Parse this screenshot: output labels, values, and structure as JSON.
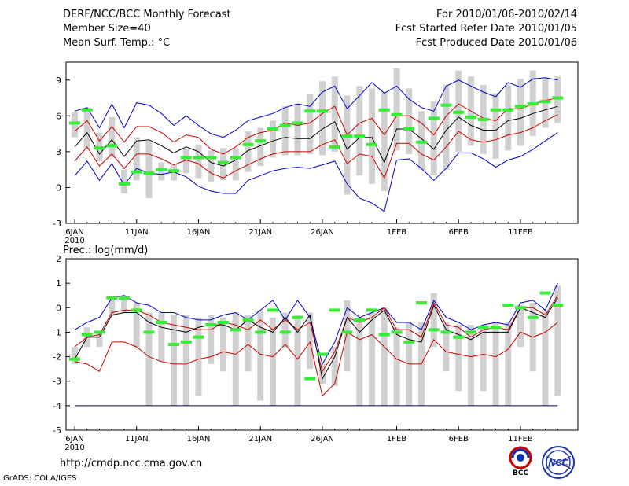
{
  "header": {
    "title": "DERF/NCC/BCC Monthly Forecast",
    "member_size": "Member Size=40",
    "variable": "Mean Surf. Temp.: °C",
    "forecast_period": "For 2010/01/06-2010/02/14",
    "started_refer": "Fcst Started Refer Date 2010/01/05",
    "produced": "Fcst Produced Date 2010/01/06"
  },
  "footer": {
    "url": "http://cmdp.ncc.cma.gov.cn",
    "grads": "GrADS: COLA/IGES",
    "logo_bcc": "BCC",
    "logo_ncc": "NCC"
  },
  "colors": {
    "box": "#d0d0d0",
    "median": "#33ee33",
    "mean": "#000000",
    "std": "#cc0000",
    "extreme": "#0000cc",
    "axis": "#000000"
  },
  "chart_data": [
    {
      "id": "temperature",
      "type": "line",
      "title": "Mean Surf. Temp.: °C",
      "ylim": [
        -3,
        10.5
      ],
      "y_ticks": [
        "-3",
        "0",
        "3",
        "6",
        "9"
      ],
      "x_ticks": [
        "6JAN",
        "11JAN",
        "16JAN",
        "21JAN",
        "26JAN",
        "1FEB",
        "6FEB",
        "11FEB"
      ],
      "x_tick_days": [
        0,
        5,
        10,
        15,
        20,
        26,
        31,
        36
      ],
      "year_label": "2010",
      "days": 40,
      "series": [
        {
          "name": "Ensemble max",
          "color": "#0000cc",
          "values": [
            6.4,
            6.7,
            5.0,
            7.0,
            5.0,
            7.1,
            6.9,
            6.2,
            5.2,
            6.0,
            5.2,
            4.5,
            4.2,
            4.8,
            5.6,
            5.9,
            6.2,
            6.7,
            7.0,
            6.8,
            8.0,
            8.5,
            6.6,
            7.7,
            8.8,
            7.9,
            8.5,
            7.4,
            6.7,
            6.4,
            8.5,
            9.0,
            8.5,
            8.0,
            7.6,
            8.8,
            8.4,
            9.1,
            9.2,
            9.0
          ]
        },
        {
          "name": "Mean + 1 std",
          "color": "#cc0000",
          "values": [
            4.7,
            5.6,
            3.9,
            5.1,
            3.8,
            5.1,
            5.1,
            4.6,
            3.8,
            4.4,
            4.2,
            3.2,
            2.8,
            3.4,
            4.2,
            4.6,
            4.8,
            5.4,
            5.2,
            5.4,
            6.2,
            6.8,
            4.4,
            5.4,
            5.8,
            4.4,
            6.0,
            6.0,
            5.4,
            4.4,
            6.0,
            7.0,
            6.4,
            5.8,
            5.6,
            6.6,
            6.6,
            7.0,
            7.3,
            7.5
          ]
        },
        {
          "name": "Ensemble mean",
          "color": "#000000",
          "values": [
            3.4,
            4.6,
            2.8,
            4.0,
            2.6,
            3.9,
            4.0,
            3.5,
            2.9,
            3.4,
            3.0,
            2.1,
            1.8,
            2.3,
            3.1,
            3.5,
            3.9,
            4.2,
            4.1,
            4.1,
            4.9,
            5.5,
            3.2,
            4.2,
            4.2,
            2.1,
            4.9,
            4.9,
            4.1,
            3.2,
            4.8,
            5.9,
            5.2,
            4.8,
            4.8,
            5.6,
            5.8,
            6.2,
            6.5,
            6.8
          ]
        },
        {
          "name": "Mean - 1 std",
          "color": "#cc0000",
          "values": [
            2.2,
            3.4,
            1.8,
            2.8,
            1.6,
            2.8,
            2.8,
            2.4,
            1.9,
            2.3,
            2.0,
            1.2,
            0.8,
            1.4,
            1.9,
            2.4,
            2.8,
            3.0,
            3.0,
            3.0,
            3.6,
            4.0,
            2.0,
            2.8,
            2.6,
            0.8,
            3.7,
            3.7,
            2.8,
            2.3,
            3.4,
            4.7,
            4.0,
            3.8,
            4.0,
            4.4,
            4.6,
            5.0,
            5.6,
            6.1
          ]
        },
        {
          "name": "Ensemble min",
          "color": "#0000cc",
          "values": [
            1.0,
            2.2,
            0.6,
            2.0,
            0.2,
            1.6,
            1.2,
            1.1,
            1.3,
            0.9,
            0.1,
            -0.3,
            -0.5,
            -0.5,
            0.6,
            1.0,
            1.4,
            1.6,
            1.7,
            1.6,
            1.9,
            2.2,
            0.3,
            -0.9,
            -1.3,
            -2.0,
            2.3,
            2.4,
            1.6,
            0.6,
            1.6,
            2.9,
            2.9,
            2.4,
            1.7,
            2.3,
            2.6,
            3.2,
            3.9,
            4.6
          ]
        }
      ],
      "boxes": {
        "low": [
          4.2,
          3.2,
          2.2,
          2.5,
          -0.5,
          0.6,
          -0.9,
          0.6,
          0.6,
          1.2,
          0.8,
          0.5,
          0.6,
          0.6,
          1.3,
          1.8,
          2.5,
          2.7,
          2.7,
          2.8,
          2.7,
          3.0,
          -0.6,
          1.0,
          0.3,
          -0.3,
          3.1,
          2.8,
          1.5,
          1.0,
          1.5,
          3.0,
          3.5,
          2.8,
          2.4,
          3.1,
          3.5,
          4.3,
          5.0,
          5.4
        ],
        "high": [
          6.3,
          6.7,
          4.6,
          5.9,
          1.5,
          4.2,
          3.9,
          2.1,
          2.0,
          3.2,
          3.6,
          3.1,
          3.3,
          3.3,
          4.7,
          5.0,
          5.6,
          6.8,
          7.0,
          7.8,
          8.9,
          9.3,
          7.7,
          8.5,
          8.3,
          8.0,
          10.0,
          8.3,
          6.4,
          7.2,
          8.6,
          9.8,
          9.3,
          8.6,
          7.9,
          8.6,
          9.1,
          9.8,
          9.2,
          9.3
        ],
        "median": [
          5.4,
          6.5,
          3.3,
          3.5,
          0.3,
          1.3,
          1.2,
          1.5,
          1.4,
          2.5,
          2.5,
          2.5,
          2.1,
          2.5,
          3.6,
          3.9,
          4.9,
          5.2,
          5.4,
          6.4,
          6.4,
          3.4,
          4.3,
          4.3,
          3.6,
          6.5,
          6.1,
          4.9,
          3.8,
          5.8,
          6.9,
          6.3,
          5.9,
          5.7,
          6.5,
          6.5,
          6.8,
          7.0,
          7.2,
          7.5
        ]
      }
    },
    {
      "id": "precipitation",
      "type": "line",
      "title": "Prec.: log(mm/d)",
      "ylim": [
        -5,
        2
      ],
      "y_ticks": [
        "-5",
        "-4",
        "-3",
        "-2",
        "-1",
        "0",
        "1",
        "2"
      ],
      "x_ticks": [
        "6JAN",
        "11JAN",
        "16JAN",
        "21JAN",
        "26JAN",
        "1FEB",
        "6FEB",
        "11FEB"
      ],
      "x_tick_days": [
        0,
        5,
        10,
        15,
        20,
        26,
        31,
        36
      ],
      "year_label": "2010",
      "days": 40,
      "floor": -4,
      "series": [
        {
          "name": "Ensemble max",
          "color": "#0000cc",
          "values": [
            -0.9,
            -0.6,
            -0.4,
            0.4,
            0.5,
            0.2,
            0.1,
            -0.2,
            -0.2,
            -0.4,
            -0.5,
            -0.5,
            -0.3,
            -0.2,
            -0.5,
            -0.1,
            0.3,
            -0.5,
            0.3,
            -0.4,
            -2.3,
            -1.4,
            0.0,
            -0.4,
            -0.2,
            0.0,
            -0.6,
            -0.6,
            -0.9,
            0.3,
            -0.4,
            -0.6,
            -0.9,
            -0.7,
            -0.6,
            -0.7,
            0.2,
            0.3,
            -0.1,
            1.0
          ]
        },
        {
          "name": "Mean + 1 std",
          "color": "#cc0000",
          "values": [
            -1.6,
            -1.2,
            -1.1,
            -0.2,
            -0.1,
            -0.1,
            -0.3,
            -0.6,
            -0.7,
            -0.8,
            -0.9,
            -0.9,
            -0.6,
            -0.7,
            -0.9,
            -0.5,
            -0.9,
            -0.5,
            -0.9,
            -0.6,
            -2.6,
            -1.8,
            -0.4,
            -0.6,
            -0.4,
            0.0,
            -0.9,
            -0.9,
            -1.2,
            0.2,
            -0.7,
            -0.8,
            -1.2,
            -0.9,
            -0.8,
            -0.9,
            0.0,
            0.0,
            -0.3,
            0.5
          ]
        },
        {
          "name": "Ensemble mean",
          "color": "#000000",
          "values": [
            -2.1,
            -1.2,
            -1.2,
            -0.3,
            -0.2,
            -0.2,
            -0.6,
            -0.8,
            -0.9,
            -1.0,
            -0.8,
            -0.7,
            -0.7,
            -0.9,
            -0.5,
            -0.8,
            -1.0,
            -0.4,
            -1.0,
            -0.3,
            -2.9,
            -2.0,
            -0.4,
            -1.0,
            -0.5,
            -0.1,
            -1.1,
            -1.3,
            -1.4,
            0.1,
            -0.9,
            -1.1,
            -1.3,
            -1.0,
            -1.0,
            -1.0,
            0.0,
            -0.2,
            -0.4,
            0.4
          ]
        },
        {
          "name": "Mean - 1 std",
          "color": "#cc0000",
          "values": [
            -2.2,
            -2.3,
            -2.6,
            -1.4,
            -1.4,
            -1.6,
            -2.0,
            -2.2,
            -2.3,
            -2.3,
            -2.1,
            -2.0,
            -1.8,
            -1.9,
            -1.5,
            -1.9,
            -2.0,
            -1.5,
            -2.1,
            -1.4,
            -3.6,
            -3.1,
            -1.0,
            -1.3,
            -1.1,
            -1.6,
            -2.1,
            -2.3,
            -2.3,
            -1.3,
            -1.8,
            -1.9,
            -2.0,
            -1.9,
            -2.0,
            -1.7,
            -1.0,
            -1.2,
            -1.0,
            -0.6
          ]
        },
        {
          "name": "Ensemble min",
          "color": "#00006a",
          "values": [
            -4,
            -4,
            -4,
            -4,
            -4,
            -4,
            -4,
            -4,
            -4,
            -4,
            -4,
            -4,
            -4,
            -4,
            -4,
            -4,
            -4,
            -4,
            -4,
            -4,
            -4,
            -4,
            -4,
            -4,
            -4,
            -4,
            -4,
            -4,
            -4,
            -4,
            -4,
            -4,
            -4,
            -4,
            -4,
            -4,
            -4,
            -4,
            -4,
            -4
          ]
        }
      ],
      "boxes": {
        "low": [
          -2.3,
          -1.6,
          -1.6,
          -0.3,
          -0.2,
          -1.6,
          -4.0,
          -2.2,
          -4.0,
          -4.0,
          -3.6,
          -2.3,
          -2.6,
          -4.0,
          -2.6,
          -3.8,
          -4.0,
          -1.6,
          -4.0,
          -2.5,
          -3.1,
          -3.2,
          -2.6,
          -4.0,
          -4.0,
          -4.0,
          -4.0,
          -4.0,
          -4.0,
          -1.6,
          -2.6,
          -3.4,
          -4.0,
          -3.4,
          -4.0,
          -4.0,
          -1.6,
          -2.6,
          -4.0,
          -3.6
        ],
        "high": [
          -1.6,
          -0.8,
          -1.0,
          0.4,
          0.5,
          0.2,
          -0.2,
          -0.2,
          -0.3,
          -0.3,
          -0.4,
          -0.3,
          -0.4,
          -0.2,
          -0.3,
          -0.1,
          -0.4,
          -0.2,
          -0.3,
          -0.2,
          -2.3,
          -1.6,
          0.3,
          -0.4,
          -0.2,
          0.0,
          -0.8,
          -0.6,
          -0.6,
          0.6,
          -0.6,
          -0.7,
          -0.7,
          -0.7,
          -0.6,
          -0.6,
          0.1,
          0.2,
          -0.1,
          0.9
        ],
        "median": [
          -2.1,
          -1.1,
          -1.0,
          0.4,
          0.4,
          -0.1,
          -1.0,
          -0.6,
          -1.5,
          -1.4,
          -1.2,
          -0.7,
          -0.6,
          -0.9,
          -0.5,
          -1.0,
          -0.1,
          -1.0,
          -0.4,
          -2.9,
          -1.9,
          -0.1,
          -1.0,
          -0.5,
          -0.1,
          -1.1,
          -1.0,
          -1.4,
          0.2,
          -0.9,
          -1.0,
          -1.2,
          -1.0,
          -0.8,
          -0.8,
          0.1,
          0.0,
          -0.4,
          0.6,
          0.1
        ]
      }
    }
  ]
}
